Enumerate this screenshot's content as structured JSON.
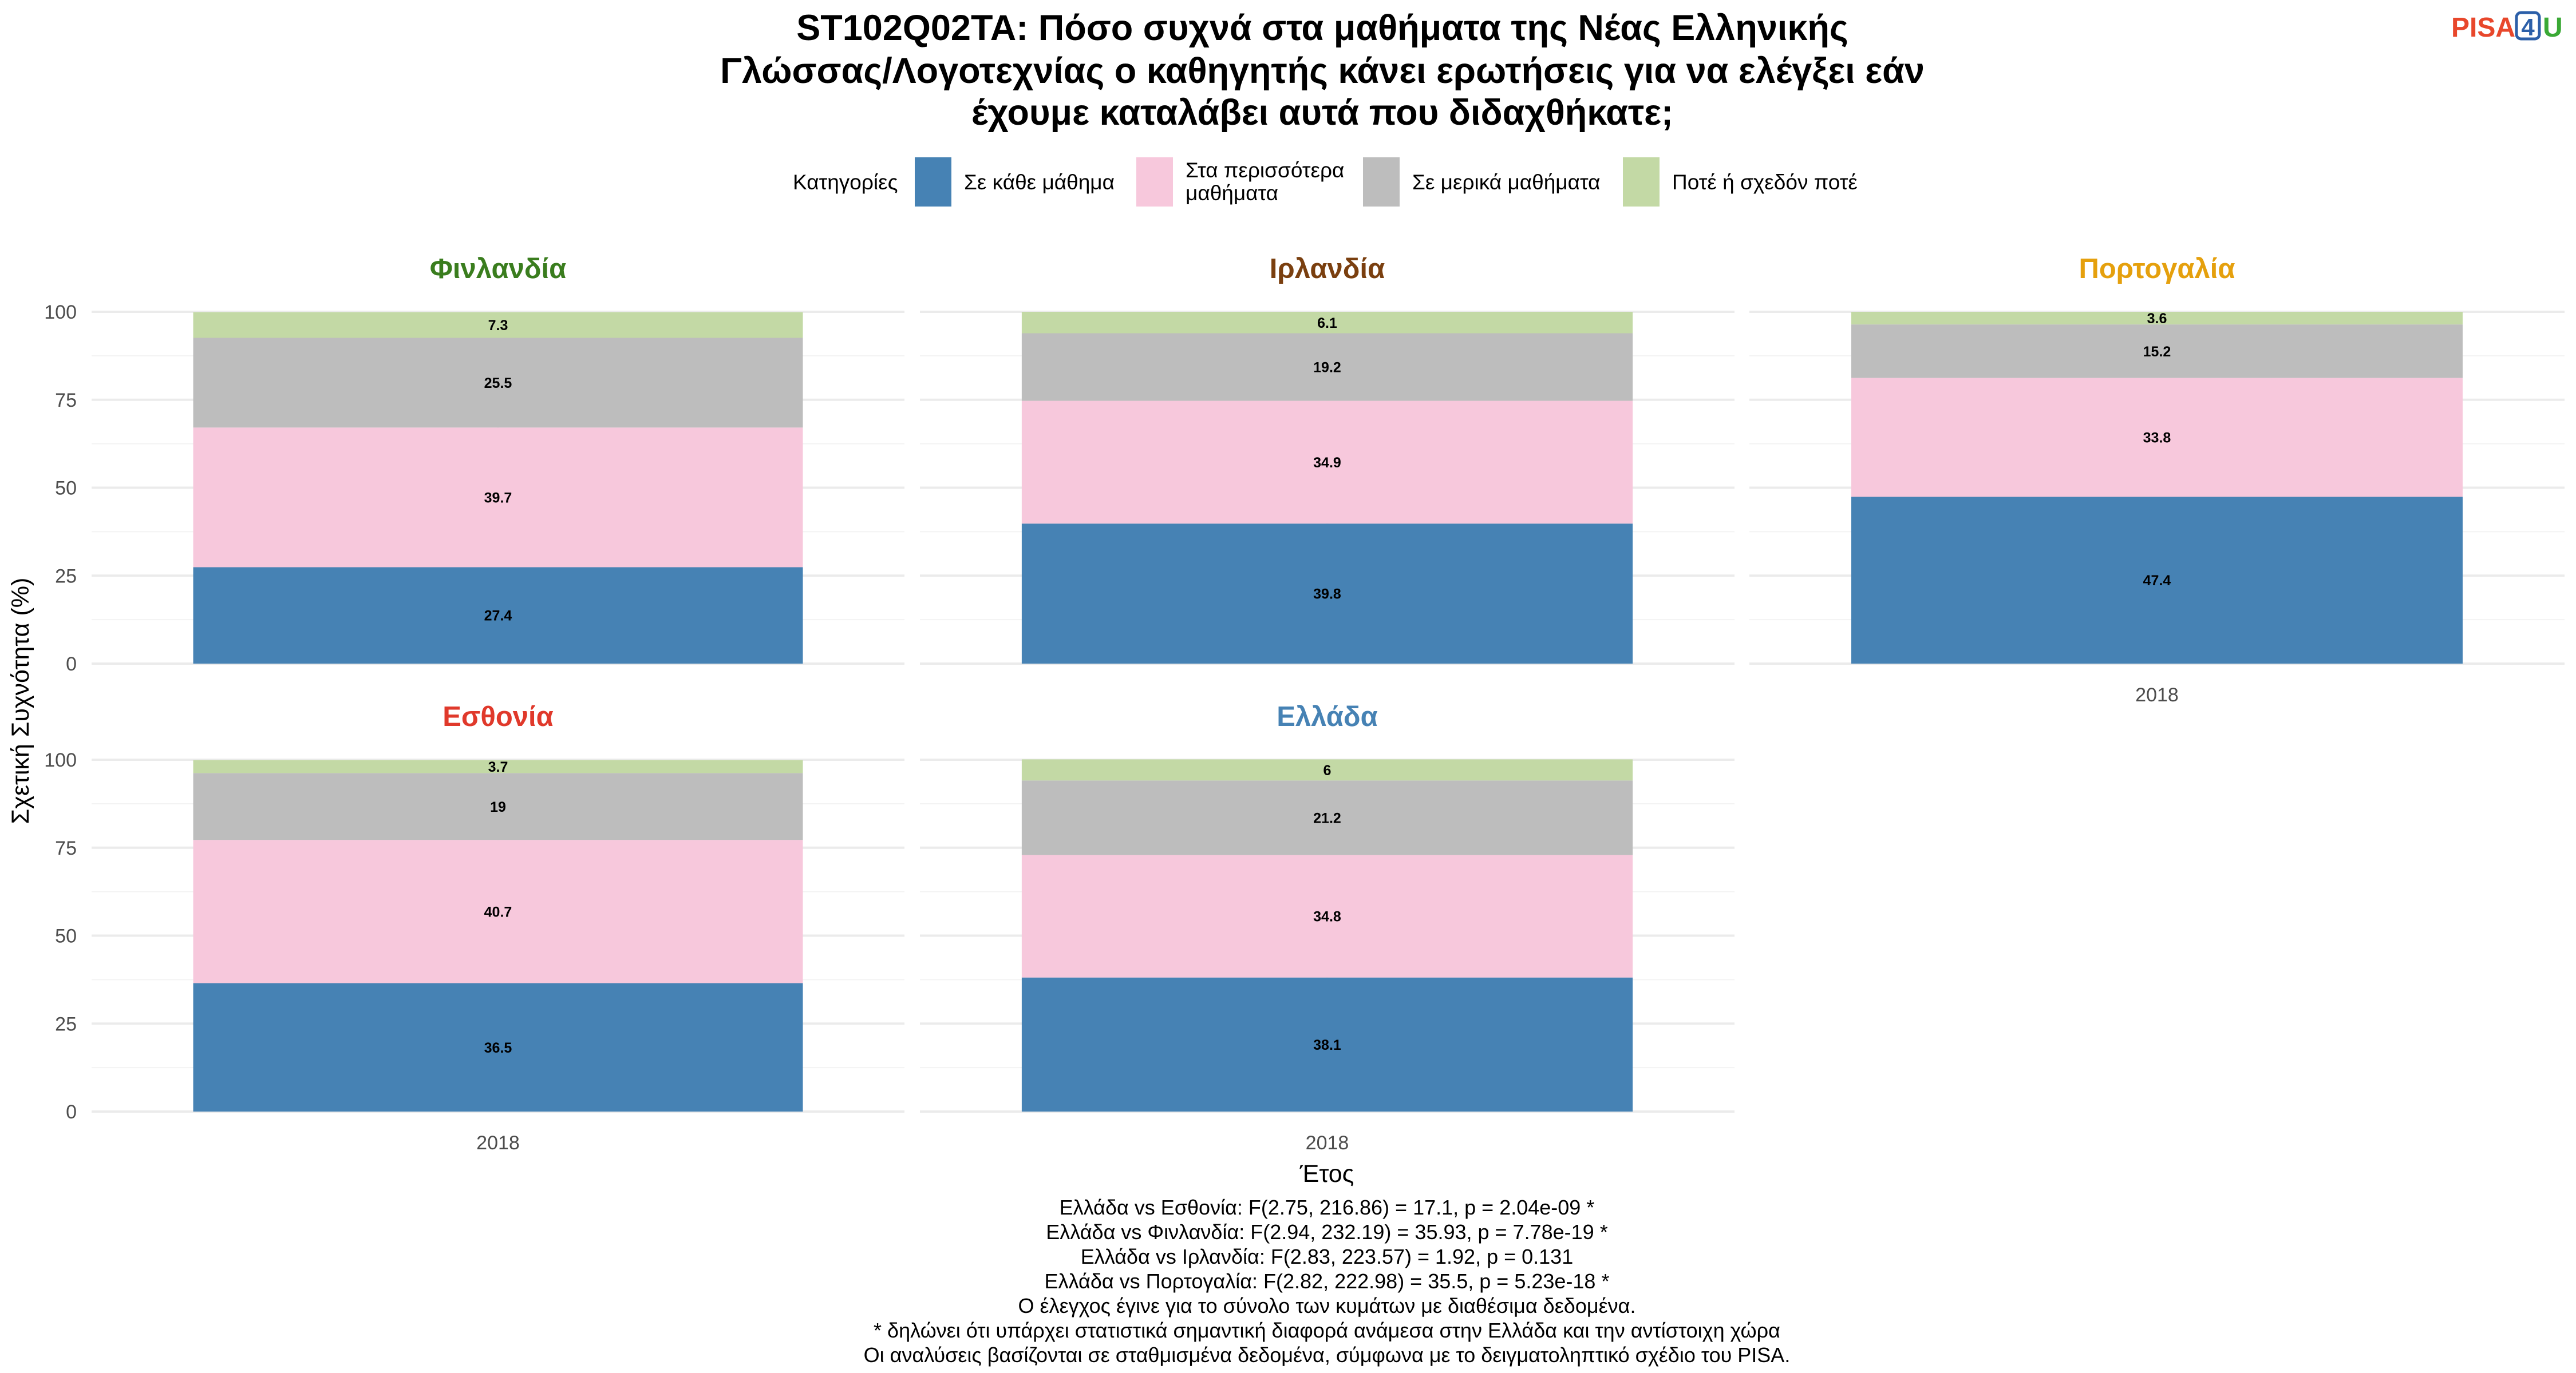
{
  "title_lines": [
    "ST102Q02TA: Πόσο συχνά στα μαθήματα της Νέας Ελληνικής",
    "Γλώσσας/Λογοτεχνίας ο καθηγητής κάνει ερωτήσεις για να ελέγξει εάν",
    "έχουμε καταλάβει αυτά που διδαχθήκατε;"
  ],
  "logo": {
    "pisa": "PISA",
    "four": "4",
    "u": "U",
    "pisa_color": "#e8472b",
    "four_color": "#2c5fa8",
    "u_color": "#3aa935"
  },
  "legend": {
    "title": "Κατηγορίες",
    "items": [
      {
        "lines": [
          "Σε κάθε μάθημα"
        ],
        "color": "#4682b4"
      },
      {
        "lines": [
          "Στα περισσότερα",
          "μαθήματα"
        ],
        "color": "#f7c8dc"
      },
      {
        "lines": [
          "Σε μερικά μαθήματα"
        ],
        "color": "#bdbdbd"
      },
      {
        "lines": [
          "Ποτέ ή σχεδόν ποτέ"
        ],
        "color": "#c3d9a5"
      }
    ]
  },
  "axis": {
    "ylabel": "Σχετική Συχνότητα (%)",
    "xlabel": "Έτος",
    "yticks": [
      "0",
      "25",
      "50",
      "75",
      "100"
    ]
  },
  "chart_data": {
    "type": "bar",
    "stacked": true,
    "categories": [
      "2018"
    ],
    "ylim": [
      0,
      100
    ],
    "series_names": [
      "Σε κάθε μάθημα",
      "Στα περισσότερα μαθήματα",
      "Σε μερικά μαθήματα",
      "Ποτέ ή σχεδόν ποτέ"
    ],
    "panels": [
      {
        "title": "Φινλανδία",
        "color": "#3a7d1e",
        "year": "2018",
        "values": [
          27.4,
          39.7,
          25.5,
          7.3
        ],
        "labels": [
          "27.4",
          "39.7",
          "25.5",
          "7.3"
        ],
        "show_x_tick": false
      },
      {
        "title": "Ιρλανδία",
        "color": "#7a3f0f",
        "year": "2018",
        "values": [
          39.8,
          34.9,
          19.2,
          6.1
        ],
        "labels": [
          "39.8",
          "34.9",
          "19.2",
          "6.1"
        ],
        "show_x_tick": false
      },
      {
        "title": "Πορτογαλία",
        "color": "#e5a00d",
        "year": "2018",
        "values": [
          47.4,
          33.8,
          15.2,
          3.6
        ],
        "labels": [
          "47.4",
          "33.8",
          "15.2",
          "3.6"
        ],
        "show_x_tick": true
      },
      {
        "title": "Εσθονία",
        "color": "#e0392b",
        "year": "2018",
        "values": [
          36.5,
          40.7,
          19,
          3.7
        ],
        "labels": [
          "36.5",
          "40.7",
          "19",
          "3.7"
        ],
        "show_x_tick": true
      },
      {
        "title": "Ελλάδα",
        "color": "#4682b4",
        "year": "2018",
        "values": [
          38.1,
          34.8,
          21.2,
          6
        ],
        "labels": [
          "38.1",
          "34.8",
          "21.2",
          "6"
        ],
        "show_x_tick": true
      }
    ]
  },
  "footnotes": [
    "Ελλάδα vs Εσθονία: F(2.75, 216.86) = 17.1, p = 2.04e-09 *",
    "Ελλάδα vs Φινλανδία: F(2.94, 232.19) = 35.93, p = 7.78e-19 *",
    "Ελλάδα vs Ιρλανδία: F(2.83, 223.57) = 1.92, p = 0.131",
    "Ελλάδα vs Πορτογαλία: F(2.82, 222.98) = 35.5, p = 5.23e-18 *",
    "Ο έλεγχος έγινε για το σύνολο των κυμάτων με διαθέσιμα δεδομένα.",
    "* δηλώνει ότι υπάρχει στατιστικά σημαντική διαφορά ανάμεσα στην Ελλάδα και την αντίστοιχη χώρα",
    "Οι αναλύσεις βασίζονται σε σταθμισμένα δεδομένα, σύμφωνα με το δειγματοληπτικό σχέδιο του PISA."
  ]
}
